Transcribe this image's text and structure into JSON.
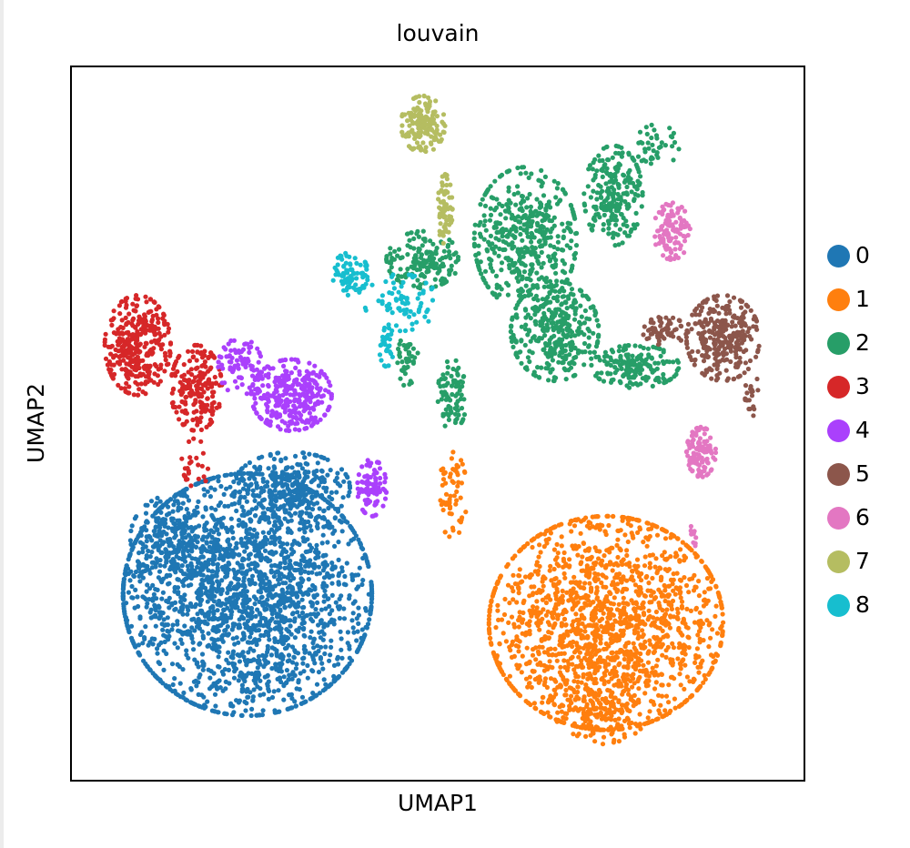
{
  "chart_data": {
    "type": "scatter",
    "title": "louvain",
    "xlabel": "UMAP1",
    "ylabel": "UMAP2",
    "grid": false,
    "ticks": false,
    "legend_position": "right",
    "coordinate_note": "cluster blobs given in normalized plot coords (0-1, origin top-left of axes box); UMAP axes have no tick values",
    "legend": [
      {
        "label": "0",
        "color": "#1f77b4"
      },
      {
        "label": "1",
        "color": "#ff7f0e"
      },
      {
        "label": "2",
        "color": "#279e68"
      },
      {
        "label": "3",
        "color": "#d62728"
      },
      {
        "label": "4",
        "color": "#aa40fc"
      },
      {
        "label": "5",
        "color": "#8c564b"
      },
      {
        "label": "6",
        "color": "#e377c2"
      },
      {
        "label": "7",
        "color": "#b5bd61"
      },
      {
        "label": "8",
        "color": "#17becf"
      }
    ],
    "series": [
      {
        "name": "0",
        "color": "#1f77b4",
        "points_approx": 2600,
        "blobs": [
          {
            "cx": 0.24,
            "cy": 0.74,
            "rx": 0.17,
            "ry": 0.17,
            "n": 2100
          },
          {
            "cx": 0.3,
            "cy": 0.59,
            "rx": 0.08,
            "ry": 0.05,
            "n": 300
          },
          {
            "cx": 0.14,
            "cy": 0.66,
            "rx": 0.06,
            "ry": 0.06,
            "n": 200
          }
        ]
      },
      {
        "name": "1",
        "color": "#ff7f0e",
        "points_approx": 1900,
        "blobs": [
          {
            "cx": 0.73,
            "cy": 0.78,
            "rx": 0.16,
            "ry": 0.15,
            "n": 1700
          },
          {
            "cx": 0.72,
            "cy": 0.9,
            "rx": 0.07,
            "ry": 0.05,
            "n": 140
          },
          {
            "cx": 0.52,
            "cy": 0.6,
            "rx": 0.02,
            "ry": 0.06,
            "n": 60
          }
        ]
      },
      {
        "name": "2",
        "color": "#279e68",
        "points_approx": 1500,
        "blobs": [
          {
            "cx": 0.62,
            "cy": 0.24,
            "rx": 0.07,
            "ry": 0.1,
            "n": 450
          },
          {
            "cx": 0.66,
            "cy": 0.37,
            "rx": 0.06,
            "ry": 0.07,
            "n": 350
          },
          {
            "cx": 0.74,
            "cy": 0.18,
            "rx": 0.04,
            "ry": 0.07,
            "n": 220
          },
          {
            "cx": 0.77,
            "cy": 0.42,
            "rx": 0.06,
            "ry": 0.03,
            "n": 180
          },
          {
            "cx": 0.48,
            "cy": 0.27,
            "rx": 0.05,
            "ry": 0.04,
            "n": 160
          },
          {
            "cx": 0.52,
            "cy": 0.46,
            "rx": 0.02,
            "ry": 0.05,
            "n": 80
          },
          {
            "cx": 0.46,
            "cy": 0.41,
            "rx": 0.015,
            "ry": 0.04,
            "n": 40
          },
          {
            "cx": 0.8,
            "cy": 0.11,
            "rx": 0.03,
            "ry": 0.03,
            "n": 40
          }
        ]
      },
      {
        "name": "3",
        "color": "#d62728",
        "points_approx": 550,
        "blobs": [
          {
            "cx": 0.09,
            "cy": 0.39,
            "rx": 0.045,
            "ry": 0.07,
            "n": 330
          },
          {
            "cx": 0.17,
            "cy": 0.45,
            "rx": 0.035,
            "ry": 0.06,
            "n": 200
          },
          {
            "cx": 0.17,
            "cy": 0.55,
            "rx": 0.02,
            "ry": 0.04,
            "n": 25
          }
        ]
      },
      {
        "name": "4",
        "color": "#aa40fc",
        "points_approx": 500,
        "blobs": [
          {
            "cx": 0.3,
            "cy": 0.46,
            "rx": 0.055,
            "ry": 0.05,
            "n": 330
          },
          {
            "cx": 0.23,
            "cy": 0.42,
            "rx": 0.03,
            "ry": 0.04,
            "n": 80
          },
          {
            "cx": 0.41,
            "cy": 0.59,
            "rx": 0.02,
            "ry": 0.04,
            "n": 90
          }
        ]
      },
      {
        "name": "5",
        "color": "#8c564b",
        "points_approx": 380,
        "blobs": [
          {
            "cx": 0.89,
            "cy": 0.38,
            "rx": 0.05,
            "ry": 0.06,
            "n": 300
          },
          {
            "cx": 0.81,
            "cy": 0.37,
            "rx": 0.03,
            "ry": 0.02,
            "n": 60
          },
          {
            "cx": 0.93,
            "cy": 0.46,
            "rx": 0.01,
            "ry": 0.03,
            "n": 20
          }
        ]
      },
      {
        "name": "6",
        "color": "#e377c2",
        "points_approx": 230,
        "blobs": [
          {
            "cx": 0.82,
            "cy": 0.23,
            "rx": 0.025,
            "ry": 0.04,
            "n": 110
          },
          {
            "cx": 0.86,
            "cy": 0.54,
            "rx": 0.02,
            "ry": 0.035,
            "n": 110
          },
          {
            "cx": 0.85,
            "cy": 0.65,
            "rx": 0.004,
            "ry": 0.03,
            "n": 10
          }
        ]
      },
      {
        "name": "7",
        "color": "#b5bd61",
        "points_approx": 220,
        "blobs": [
          {
            "cx": 0.48,
            "cy": 0.08,
            "rx": 0.03,
            "ry": 0.04,
            "n": 150
          },
          {
            "cx": 0.51,
            "cy": 0.2,
            "rx": 0.01,
            "ry": 0.05,
            "n": 70
          }
        ]
      },
      {
        "name": "8",
        "color": "#17becf",
        "points_approx": 180,
        "blobs": [
          {
            "cx": 0.38,
            "cy": 0.29,
            "rx": 0.025,
            "ry": 0.03,
            "n": 80
          },
          {
            "cx": 0.45,
            "cy": 0.33,
            "rx": 0.05,
            "ry": 0.04,
            "n": 70
          },
          {
            "cx": 0.43,
            "cy": 0.39,
            "rx": 0.01,
            "ry": 0.03,
            "n": 30
          }
        ]
      }
    ]
  },
  "plot": {
    "title": "louvain",
    "xlabel": "UMAP1",
    "ylabel": "UMAP2"
  }
}
